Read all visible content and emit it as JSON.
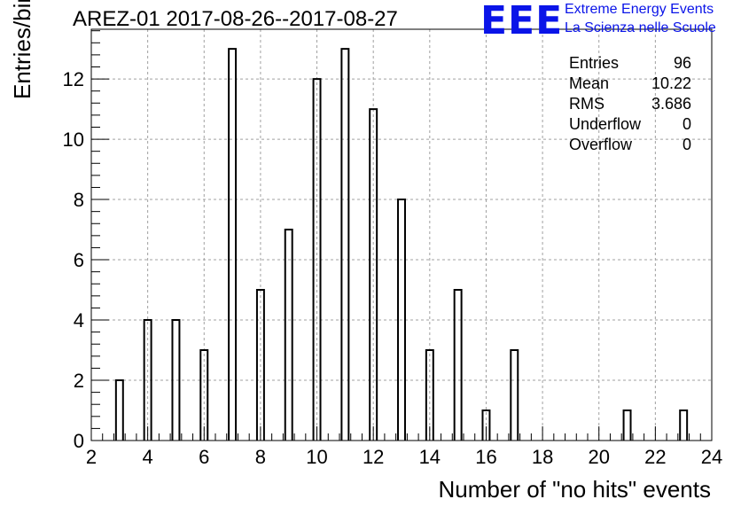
{
  "chart_data": {
    "type": "bar",
    "title": "AREZ-01 2017-08-26--2017-08-27",
    "xlabel": "Number of \"no hits\" events",
    "ylabel": "Entries/bin",
    "xlim": [
      2,
      24
    ],
    "ylim": [
      0,
      13.65
    ],
    "xticks": [
      "2",
      "4",
      "6",
      "8",
      "10",
      "12",
      "14",
      "16",
      "18",
      "20",
      "22",
      "24"
    ],
    "yticks": [
      "0",
      "2",
      "4",
      "6",
      "8",
      "10",
      "12"
    ],
    "grid": true,
    "bin_width": 0.25,
    "x": [
      3,
      4,
      5,
      6,
      7,
      8,
      9,
      10,
      11,
      12,
      13,
      14,
      15,
      16,
      17,
      21,
      23
    ],
    "values": [
      2,
      4,
      4,
      3,
      13,
      5,
      7,
      12,
      13,
      11,
      8,
      3,
      5,
      1,
      3,
      1,
      1
    ],
    "stats": [
      {
        "label": "Entries",
        "value": "96"
      },
      {
        "label": "Mean",
        "value": "10.22"
      },
      {
        "label": "RMS",
        "value": "3.686"
      },
      {
        "label": "Underflow",
        "value": "0"
      },
      {
        "label": "Overflow",
        "value": "0"
      }
    ],
    "stats_placement": "top-right"
  },
  "logo": {
    "mark": "EEE",
    "line1": "Extreme Energy Events",
    "line2": "La Scienza nelle Scuole",
    "color": "#0a14e8"
  }
}
